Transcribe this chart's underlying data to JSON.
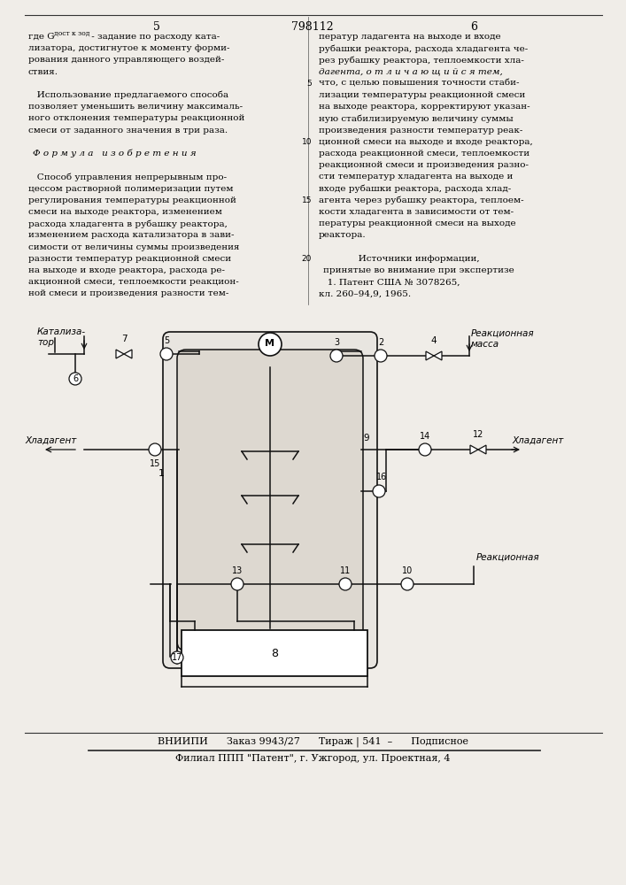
{
  "bg_color": "#f0ede8",
  "text_color": "#000000",
  "page_number_left": "5",
  "page_number_center": "798112",
  "page_number_right": "6",
  "footer_line1": "ВНИИПИ      Заказ 9943/27      Тираж | 541  –      Подписное",
  "footer_line2": "Филиал ППП \"Патент\", г. Ужгород, ул. Проектная, 4"
}
